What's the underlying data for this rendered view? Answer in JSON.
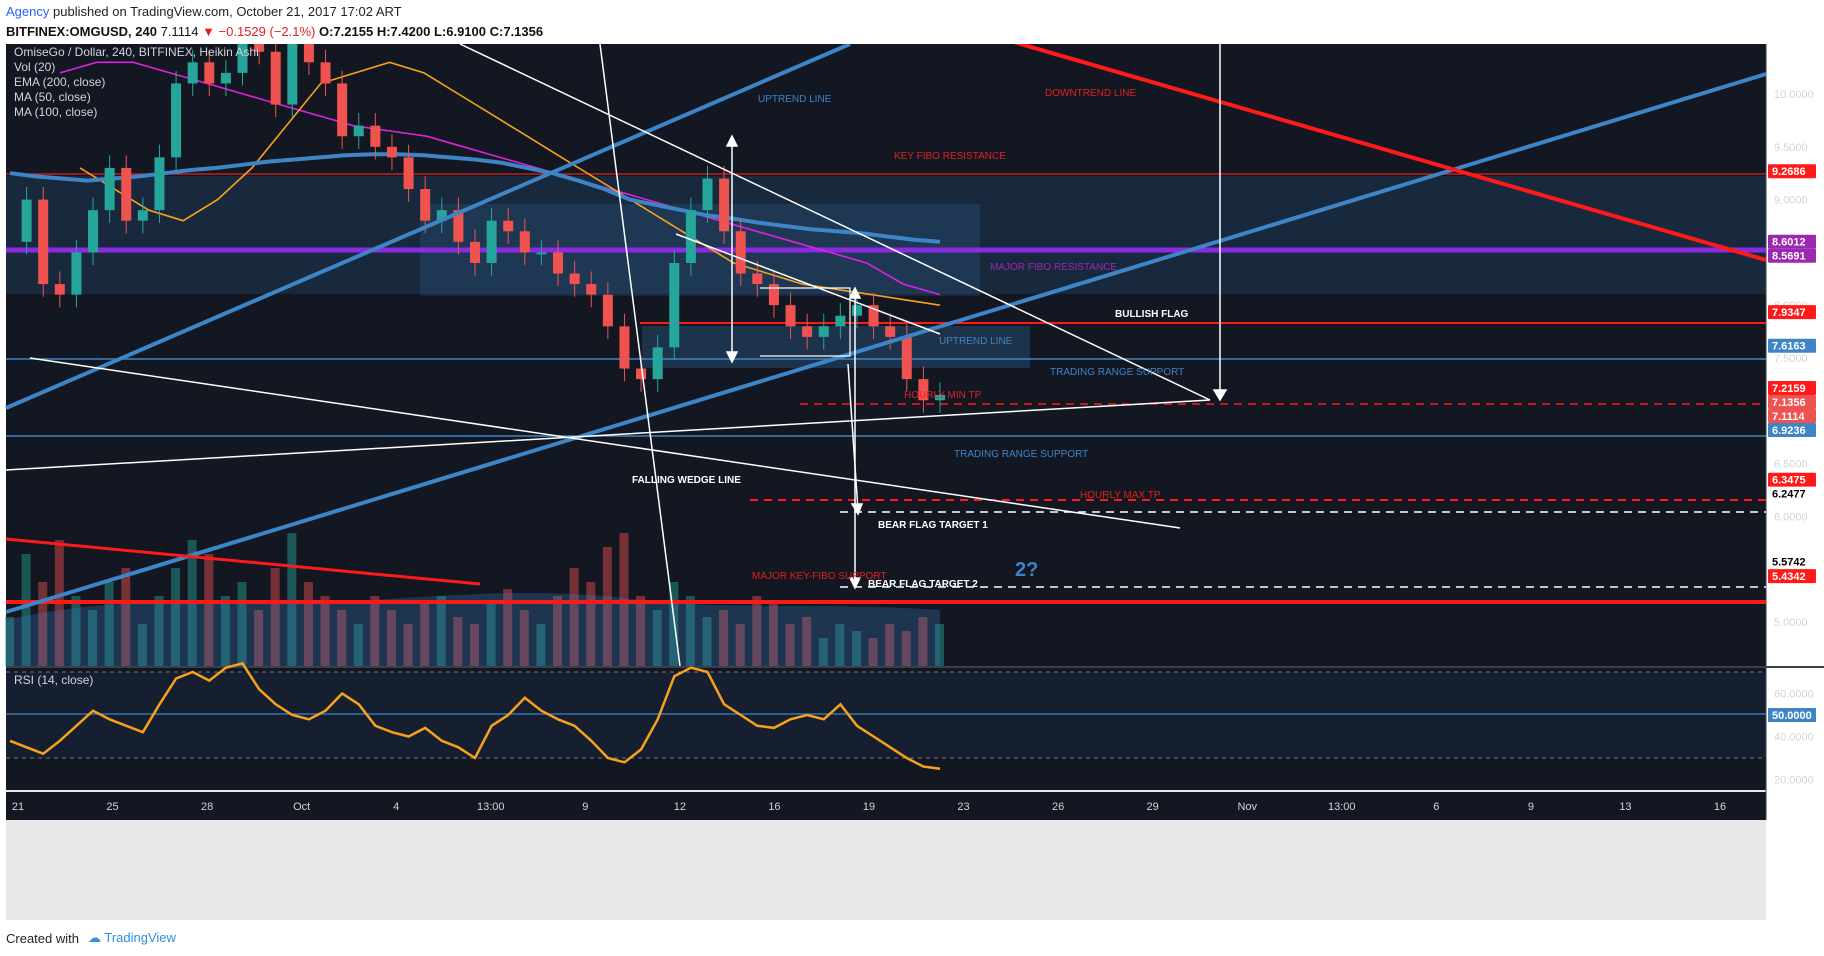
{
  "header": {
    "author": "Agency",
    "published": "published on TradingView.com, October 21, 2017 17:02 ART",
    "symbol": "BITFINEX:OMGUSD, 240",
    "last": "7.1114",
    "change": "▼ −0.1529 (−2.1%)",
    "ohlc_o": "O:7.2155",
    "ohlc_h": "H:7.4200",
    "ohlc_l": "L:6.9100",
    "ohlc_c": "C:7.1356"
  },
  "legend": {
    "title": "OmiseGo / Dollar, 240, BITFINEX, Heikin Ashi",
    "vol": "Vol (20)",
    "ema": "EMA (200, close)",
    "ma50": "MA (50, close)",
    "ma100": "MA (100, close)",
    "rsi": "RSI (14, close)"
  },
  "annotations": {
    "uptrend_top": "UPTREND LINE",
    "downtrend": "DOWNTREND LINE",
    "key_fibo": "KEY FIBO RESISTANCE",
    "major_fibo": "MAJOR FIBO RESISTANCE",
    "bullish_flag": "BULLISH FLAG",
    "uptrend_mid": "UPTREND LINE",
    "trs_1": "TRADING RANGE SUPPORT",
    "hourly_min": "HOURLY MIN TP",
    "trs_2": "TRADING RANGE SUPPORT",
    "falling_wedge": "FALLING WEDGE LINE",
    "hourly_max": "HOURLY MAX TP",
    "bear1": "BEAR FLAG TARGET 1",
    "q": "2?",
    "major_key_fibo": "MAJOR KEY-FIBO SUPPORT",
    "bear2": "BEAR FLAG TARGET 2"
  },
  "footer": {
    "created": "Created with",
    "logo": "TradingView"
  },
  "colors": {
    "bg": "#131722",
    "up": "#26a69a",
    "down": "#ef5350",
    "blue": "#3d85c6",
    "red": "#ff1a1a",
    "purple": "#9c27b0",
    "orange": "#f7a21b"
  },
  "chart_data": {
    "type": "line",
    "y_ticks": [
      "10.0000",
      "9.5000",
      "9.0000",
      "8.5000",
      "8.0000",
      "7.5000",
      "6.5000",
      "6.0000",
      "5.5000",
      "5.0000"
    ],
    "y_labels": [
      {
        "text": "9.2686",
        "value": 9.2686,
        "color": "#ff1a1a"
      },
      {
        "text": "8.6012",
        "value": 8.6012,
        "color": "#9c27b0"
      },
      {
        "text": "8.5691",
        "value": 8.5691,
        "color": "#9c27b0"
      },
      {
        "text": "7.9347",
        "value": 7.9347,
        "color": "#ff1a1a"
      },
      {
        "text": "7.6163",
        "value": 7.6163,
        "color": "#3d85c6"
      },
      {
        "text": "7.2159",
        "value": 7.2159,
        "color": "#ff1a1a"
      },
      {
        "text": "7.1356",
        "value": 7.1356,
        "color": "#ef5350"
      },
      {
        "text": "7.1114",
        "value": 7.1114,
        "color": "#ef5350"
      },
      {
        "text": "6.9236",
        "value": 6.9236,
        "color": "#3d85c6"
      },
      {
        "text": "6.3475",
        "value": 6.3475,
        "color": "#ff1a1a"
      },
      {
        "text": "6.2477",
        "value": 6.2477,
        "color": "#ffffff"
      },
      {
        "text": "5.5742",
        "value": 5.5742,
        "color": "#ffffff"
      },
      {
        "text": "5.4342",
        "value": 5.4342,
        "color": "#ff1a1a"
      }
    ],
    "x_ticks": [
      "21",
      "25",
      "28",
      "Oct",
      "4",
      "13:00",
      "9",
      "12",
      "16",
      "19",
      "23",
      "26",
      "29",
      "Nov",
      "13:00",
      "6",
      "9",
      "13",
      "16"
    ],
    "rsi_ticks": [
      "60.0000",
      "40.0000",
      "20.0000"
    ],
    "rsi_label": "50.0000",
    "price": [
      8.6,
      9.0,
      8.2,
      8.1,
      8.5,
      8.9,
      9.3,
      8.8,
      8.9,
      9.4,
      10.1,
      10.3,
      10.1,
      10.2,
      10.6,
      10.4,
      9.9,
      10.5,
      10.3,
      10.1,
      9.6,
      9.7,
      9.5,
      9.4,
      9.1,
      8.8,
      8.9,
      8.6,
      8.4,
      8.8,
      8.7,
      8.5,
      8.5,
      8.3,
      8.2,
      8.1,
      7.8,
      7.4,
      7.3,
      7.6,
      8.4,
      8.9,
      9.2,
      8.7,
      8.3,
      8.2,
      8.0,
      7.8,
      7.7,
      7.8,
      7.9,
      8.0,
      7.8,
      7.7,
      7.3,
      7.1,
      7.15
    ],
    "rsi": [
      38,
      35,
      32,
      38,
      45,
      52,
      48,
      45,
      42,
      55,
      67,
      70,
      66,
      72,
      74,
      62,
      55,
      50,
      48,
      52,
      60,
      55,
      45,
      42,
      40,
      44,
      38,
      35,
      30,
      45,
      50,
      58,
      52,
      48,
      45,
      38,
      30,
      28,
      34,
      48,
      68,
      72,
      70,
      55,
      50,
      45,
      44,
      48,
      50,
      48,
      55,
      45,
      40,
      35,
      30,
      26,
      25
    ],
    "ema200": [
      9.25,
      9.22,
      9.2,
      9.18,
      9.2,
      9.22,
      9.25,
      9.28,
      9.3,
      9.33,
      9.36,
      9.38,
      9.4,
      9.42,
      9.43,
      9.43,
      9.42,
      9.4,
      9.38,
      9.35,
      9.3,
      9.25,
      9.18,
      9.1,
      9.0,
      8.95,
      8.9,
      8.85,
      8.82,
      8.78,
      8.75,
      8.72,
      8.7,
      8.68,
      8.65,
      8.62,
      8.6
    ],
    "ma50": [
      9.3,
      9.1,
      8.9,
      8.8,
      9.0,
      9.3,
      9.7,
      10.1,
      10.2,
      10.3,
      10.2,
      10.0,
      9.8,
      9.6,
      9.4,
      9.2,
      9.0,
      8.8,
      8.6,
      8.4,
      8.3,
      8.2,
      8.15,
      8.1,
      8.05,
      8.0
    ],
    "ma100": [
      10.2,
      10.3,
      10.3,
      10.2,
      10.1,
      10.0,
      9.9,
      9.8,
      9.7,
      9.65,
      9.6,
      9.5,
      9.4,
      9.3,
      9.2,
      9.1,
      9.0,
      8.9,
      8.8,
      8.7,
      8.6,
      8.5,
      8.4,
      8.2,
      8.1
    ],
    "volume": [
      0.35,
      0.8,
      0.6,
      0.9,
      0.5,
      0.4,
      0.6,
      0.7,
      0.3,
      0.5,
      0.7,
      0.9,
      0.8,
      0.5,
      0.6,
      0.4,
      0.7,
      0.95,
      0.6,
      0.5,
      0.4,
      0.3,
      0.5,
      0.4,
      0.3,
      0.45,
      0.5,
      0.35,
      0.3,
      0.45,
      0.55,
      0.4,
      0.3,
      0.5,
      0.7,
      0.6,
      0.85,
      0.95,
      0.5,
      0.4,
      0.6,
      0.5,
      0.35,
      0.4,
      0.3,
      0.5,
      0.45,
      0.3,
      0.35,
      0.2,
      0.3,
      0.25,
      0.2,
      0.3,
      0.25,
      0.35,
      0.3
    ]
  }
}
